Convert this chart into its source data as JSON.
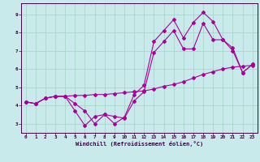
{
  "xlabel": "Windchill (Refroidissement éolien,°C)",
  "bg_color": "#c8eaea",
  "grid_color": "#aad4cc",
  "line_color": "#aa0099",
  "xlim": [
    -0.5,
    23.5
  ],
  "ylim": [
    2.5,
    9.6
  ],
  "yticks": [
    3,
    4,
    5,
    6,
    7,
    8,
    9
  ],
  "xticks": [
    0,
    1,
    2,
    3,
    4,
    5,
    6,
    7,
    8,
    9,
    10,
    11,
    12,
    13,
    14,
    15,
    16,
    17,
    18,
    19,
    20,
    21,
    22,
    23
  ],
  "line1_x": [
    0,
    1,
    2,
    3,
    4,
    5,
    6,
    7,
    8,
    9,
    10,
    11,
    12,
    13,
    14,
    15,
    16,
    17,
    18,
    19,
    20,
    21,
    22,
    23
  ],
  "line1_y": [
    4.2,
    4.1,
    4.4,
    4.5,
    4.5,
    4.55,
    4.55,
    4.6,
    4.6,
    4.65,
    4.7,
    4.75,
    4.8,
    4.9,
    5.05,
    5.15,
    5.3,
    5.5,
    5.7,
    5.85,
    6.0,
    6.1,
    6.15,
    6.2
  ],
  "line2_x": [
    0,
    1,
    2,
    3,
    4,
    5,
    6,
    7,
    8,
    9,
    10,
    11,
    12,
    13,
    14,
    15,
    16,
    17,
    18,
    19,
    20,
    21,
    22,
    23
  ],
  "line2_y": [
    4.2,
    4.1,
    4.4,
    4.5,
    4.5,
    3.7,
    2.9,
    3.4,
    3.5,
    3.4,
    3.3,
    4.25,
    4.75,
    6.9,
    7.5,
    8.1,
    7.1,
    7.1,
    8.5,
    7.6,
    7.6,
    7.15,
    5.8,
    6.25
  ],
  "line3_x": [
    0,
    1,
    2,
    3,
    4,
    5,
    6,
    7,
    8,
    9,
    10,
    11,
    12,
    13,
    14,
    15,
    16,
    17,
    18,
    19,
    20,
    21,
    22,
    23
  ],
  "line3_y": [
    4.2,
    4.1,
    4.4,
    4.5,
    4.5,
    4.1,
    3.7,
    3.0,
    3.5,
    3.0,
    3.35,
    4.6,
    5.1,
    7.5,
    8.1,
    8.7,
    7.7,
    8.55,
    9.1,
    8.6,
    7.6,
    7.0,
    5.8,
    6.25
  ]
}
